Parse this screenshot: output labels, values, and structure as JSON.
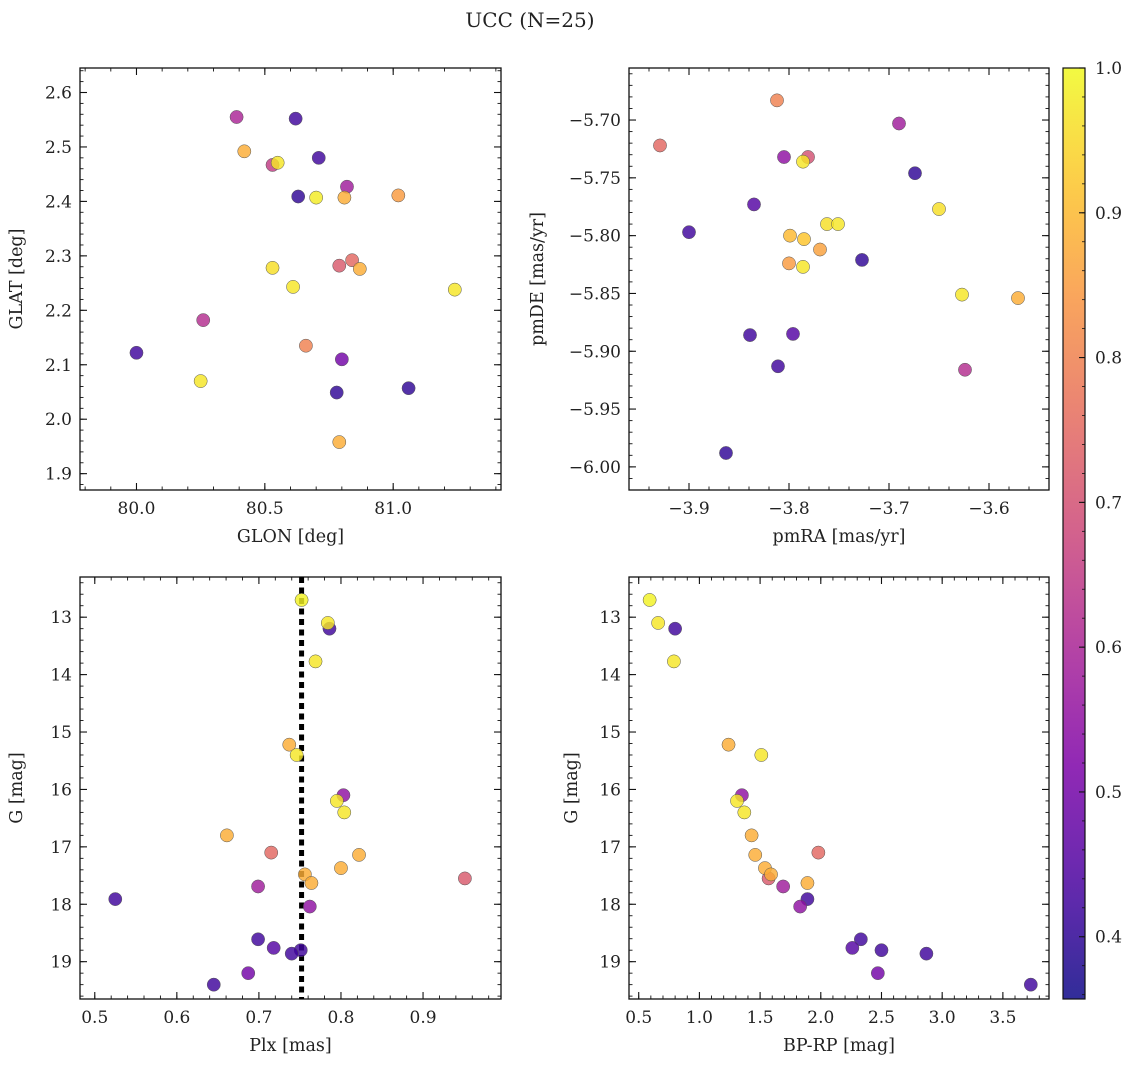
{
  "figure": {
    "title": "UCC (N=25)"
  },
  "colorbar": {
    "colormap": "plasma",
    "range": [
      0.357,
      1.0
    ],
    "ticks": [
      "0.4",
      "0.5",
      "0.6",
      "0.7",
      "0.8",
      "0.9",
      "1.0"
    ],
    "tick_values": [
      0.4,
      0.5,
      0.6,
      0.7,
      0.8,
      0.9,
      1.0
    ]
  },
  "chart_data": [
    {
      "type": "scatter",
      "xlabel": "GLON [deg]",
      "ylabel": "GLAT [deg]",
      "xlim": [
        79.78,
        81.42
      ],
      "ylim": [
        1.87,
        2.645
      ],
      "x_ticks": [
        80.0,
        80.5,
        81.0
      ],
      "x_tick_labels": [
        "80.0",
        "80.5",
        "81.0"
      ],
      "y_ticks": [
        1.9,
        2.0,
        2.1,
        2.2,
        2.3,
        2.4,
        2.5,
        2.6
      ],
      "y_tick_labels": [
        "1.9",
        "2.0",
        "2.1",
        "2.2",
        "2.3",
        "2.4",
        "2.5",
        "2.6"
      ],
      "y_inverted": false,
      "points": [
        {
          "x": 80.39,
          "y": 2.555,
          "c": 0.6
        },
        {
          "x": 80.62,
          "y": 2.552,
          "c": 0.42
        },
        {
          "x": 80.42,
          "y": 2.492,
          "c": 0.88
        },
        {
          "x": 80.71,
          "y": 2.48,
          "c": 0.42
        },
        {
          "x": 80.53,
          "y": 2.467,
          "c": 0.65
        },
        {
          "x": 80.55,
          "y": 2.471,
          "c": 0.97
        },
        {
          "x": 80.82,
          "y": 2.427,
          "c": 0.58
        },
        {
          "x": 81.02,
          "y": 2.411,
          "c": 0.85
        },
        {
          "x": 80.63,
          "y": 2.409,
          "c": 0.4
        },
        {
          "x": 80.7,
          "y": 2.407,
          "c": 0.98
        },
        {
          "x": 80.81,
          "y": 2.407,
          "c": 0.88
        },
        {
          "x": 80.84,
          "y": 2.292,
          "c": 0.75
        },
        {
          "x": 80.79,
          "y": 2.282,
          "c": 0.72
        },
        {
          "x": 80.87,
          "y": 2.276,
          "c": 0.88
        },
        {
          "x": 80.53,
          "y": 2.278,
          "c": 0.96
        },
        {
          "x": 80.61,
          "y": 2.243,
          "c": 0.97
        },
        {
          "x": 81.24,
          "y": 2.238,
          "c": 0.97
        },
        {
          "x": 80.26,
          "y": 2.182,
          "c": 0.62
        },
        {
          "x": 80.66,
          "y": 2.135,
          "c": 0.8
        },
        {
          "x": 80.0,
          "y": 2.122,
          "c": 0.42
        },
        {
          "x": 80.8,
          "y": 2.11,
          "c": 0.5
        },
        {
          "x": 80.25,
          "y": 2.07,
          "c": 0.97
        },
        {
          "x": 81.06,
          "y": 2.057,
          "c": 0.4
        },
        {
          "x": 80.78,
          "y": 2.049,
          "c": 0.4
        },
        {
          "x": 80.79,
          "y": 1.958,
          "c": 0.88
        }
      ]
    },
    {
      "type": "scatter",
      "xlabel": "pmRA [mas/yr]",
      "ylabel": "pmDE [mas/yr]",
      "xlim": [
        -3.96,
        -3.54
      ],
      "ylim": [
        -6.02,
        -5.655
      ],
      "x_ticks": [
        -3.9,
        -3.8,
        -3.7,
        -3.6
      ],
      "x_tick_labels": [
        "−3.9",
        "−3.8",
        "−3.7",
        "−3.6"
      ],
      "y_ticks": [
        -6.0,
        -5.95,
        -5.9,
        -5.85,
        -5.8,
        -5.75,
        -5.7
      ],
      "y_tick_labels": [
        "−6.00",
        "−5.95",
        "−5.90",
        "−5.85",
        "−5.80",
        "−5.75",
        "−5.70"
      ],
      "y_inverted": false,
      "points": [
        {
          "x": -3.812,
          "y": -5.683,
          "c": 0.8
        },
        {
          "x": -3.929,
          "y": -5.722,
          "c": 0.75
        },
        {
          "x": -3.69,
          "y": -5.703,
          "c": 0.58
        },
        {
          "x": -3.805,
          "y": -5.732,
          "c": 0.55
        },
        {
          "x": -3.781,
          "y": -5.732,
          "c": 0.7
        },
        {
          "x": -3.786,
          "y": -5.736,
          "c": 0.97
        },
        {
          "x": -3.674,
          "y": -5.746,
          "c": 0.4
        },
        {
          "x": -3.835,
          "y": -5.773,
          "c": 0.45
        },
        {
          "x": -3.65,
          "y": -5.777,
          "c": 0.96
        },
        {
          "x": -3.762,
          "y": -5.79,
          "c": 0.96
        },
        {
          "x": -3.751,
          "y": -5.79,
          "c": 0.97
        },
        {
          "x": -3.9,
          "y": -5.797,
          "c": 0.42
        },
        {
          "x": -3.799,
          "y": -5.8,
          "c": 0.9
        },
        {
          "x": -3.785,
          "y": -5.803,
          "c": 0.92
        },
        {
          "x": -3.769,
          "y": -5.812,
          "c": 0.86
        },
        {
          "x": -3.8,
          "y": -5.824,
          "c": 0.85
        },
        {
          "x": -3.786,
          "y": -5.827,
          "c": 0.97
        },
        {
          "x": -3.727,
          "y": -5.821,
          "c": 0.4
        },
        {
          "x": -3.627,
          "y": -5.851,
          "c": 0.97
        },
        {
          "x": -3.571,
          "y": -5.854,
          "c": 0.88
        },
        {
          "x": -3.839,
          "y": -5.886,
          "c": 0.42
        },
        {
          "x": -3.796,
          "y": -5.885,
          "c": 0.45
        },
        {
          "x": -3.811,
          "y": -5.913,
          "c": 0.42
        },
        {
          "x": -3.624,
          "y": -5.916,
          "c": 0.62
        },
        {
          "x": -3.863,
          "y": -5.988,
          "c": 0.4
        }
      ]
    },
    {
      "type": "scatter",
      "xlabel": "Plx [mas]",
      "ylabel": "G [mag]",
      "xlim": [
        0.482,
        0.995
      ],
      "ylim": [
        12.3,
        19.65
      ],
      "x_ticks": [
        0.5,
        0.6,
        0.7,
        0.8,
        0.9
      ],
      "x_tick_labels": [
        "0.5",
        "0.6",
        "0.7",
        "0.8",
        "0.9"
      ],
      "y_ticks": [
        13,
        14,
        15,
        16,
        17,
        18,
        19
      ],
      "y_tick_labels": [
        "13",
        "14",
        "15",
        "16",
        "17",
        "18",
        "19"
      ],
      "y_inverted": true,
      "vline": 0.752,
      "points": [
        {
          "x": 0.752,
          "y": 12.7,
          "c": 0.99
        },
        {
          "x": 0.784,
          "y": 13.1,
          "c": 0.97
        },
        {
          "x": 0.786,
          "y": 13.2,
          "c": 0.42
        },
        {
          "x": 0.769,
          "y": 13.77,
          "c": 0.97
        },
        {
          "x": 0.737,
          "y": 15.22,
          "c": 0.88
        },
        {
          "x": 0.746,
          "y": 15.4,
          "c": 0.97
        },
        {
          "x": 0.803,
          "y": 16.1,
          "c": 0.55
        },
        {
          "x": 0.795,
          "y": 16.2,
          "c": 0.97
        },
        {
          "x": 0.804,
          "y": 16.4,
          "c": 0.97
        },
        {
          "x": 0.661,
          "y": 16.8,
          "c": 0.88
        },
        {
          "x": 0.715,
          "y": 17.1,
          "c": 0.75
        },
        {
          "x": 0.822,
          "y": 17.14,
          "c": 0.88
        },
        {
          "x": 0.8,
          "y": 17.37,
          "c": 0.88
        },
        {
          "x": 0.756,
          "y": 17.48,
          "c": 0.88
        },
        {
          "x": 0.951,
          "y": 17.55,
          "c": 0.72
        },
        {
          "x": 0.764,
          "y": 17.63,
          "c": 0.88
        },
        {
          "x": 0.699,
          "y": 17.69,
          "c": 0.58
        },
        {
          "x": 0.525,
          "y": 17.91,
          "c": 0.42
        },
        {
          "x": 0.762,
          "y": 18.04,
          "c": 0.55
        },
        {
          "x": 0.699,
          "y": 18.61,
          "c": 0.42
        },
        {
          "x": 0.718,
          "y": 18.76,
          "c": 0.45
        },
        {
          "x": 0.751,
          "y": 18.8,
          "c": 0.42
        },
        {
          "x": 0.74,
          "y": 18.86,
          "c": 0.42
        },
        {
          "x": 0.687,
          "y": 19.2,
          "c": 0.5
        },
        {
          "x": 0.645,
          "y": 19.4,
          "c": 0.42
        }
      ]
    },
    {
      "type": "scatter",
      "xlabel": "BP-RP [mag]",
      "ylabel": "G [mag]",
      "xlim": [
        0.42,
        3.88
      ],
      "ylim": [
        12.3,
        19.65
      ],
      "x_ticks": [
        0.5,
        1.0,
        1.5,
        2.0,
        2.5,
        3.0,
        3.5
      ],
      "x_tick_labels": [
        "0.5",
        "1.0",
        "1.5",
        "2.0",
        "2.5",
        "3.0",
        "3.5"
      ],
      "y_ticks": [
        13,
        14,
        15,
        16,
        17,
        18,
        19
      ],
      "y_tick_labels": [
        "13",
        "14",
        "15",
        "16",
        "17",
        "18",
        "19"
      ],
      "y_inverted": true,
      "points": [
        {
          "x": 0.59,
          "y": 12.7,
          "c": 0.99
        },
        {
          "x": 0.66,
          "y": 13.1,
          "c": 0.97
        },
        {
          "x": 0.8,
          "y": 13.2,
          "c": 0.42
        },
        {
          "x": 0.79,
          "y": 13.77,
          "c": 0.97
        },
        {
          "x": 1.24,
          "y": 15.22,
          "c": 0.88
        },
        {
          "x": 1.51,
          "y": 15.4,
          "c": 0.97
        },
        {
          "x": 1.35,
          "y": 16.1,
          "c": 0.55
        },
        {
          "x": 1.31,
          "y": 16.2,
          "c": 0.97
        },
        {
          "x": 1.37,
          "y": 16.4,
          "c": 0.97
        },
        {
          "x": 1.43,
          "y": 16.8,
          "c": 0.88
        },
        {
          "x": 1.98,
          "y": 17.1,
          "c": 0.75
        },
        {
          "x": 1.46,
          "y": 17.14,
          "c": 0.88
        },
        {
          "x": 1.54,
          "y": 17.37,
          "c": 0.88
        },
        {
          "x": 1.59,
          "y": 17.48,
          "c": 0.88
        },
        {
          "x": 1.57,
          "y": 17.55,
          "c": 0.72
        },
        {
          "x": 1.89,
          "y": 17.63,
          "c": 0.88
        },
        {
          "x": 1.69,
          "y": 17.69,
          "c": 0.58
        },
        {
          "x": 1.89,
          "y": 17.91,
          "c": 0.42
        },
        {
          "x": 1.83,
          "y": 18.04,
          "c": 0.55
        },
        {
          "x": 2.33,
          "y": 18.61,
          "c": 0.42
        },
        {
          "x": 2.26,
          "y": 18.76,
          "c": 0.45
        },
        {
          "x": 2.5,
          "y": 18.8,
          "c": 0.42
        },
        {
          "x": 2.87,
          "y": 18.86,
          "c": 0.42
        },
        {
          "x": 2.47,
          "y": 19.2,
          "c": 0.5
        },
        {
          "x": 3.73,
          "y": 19.4,
          "c": 0.42
        }
      ]
    }
  ]
}
